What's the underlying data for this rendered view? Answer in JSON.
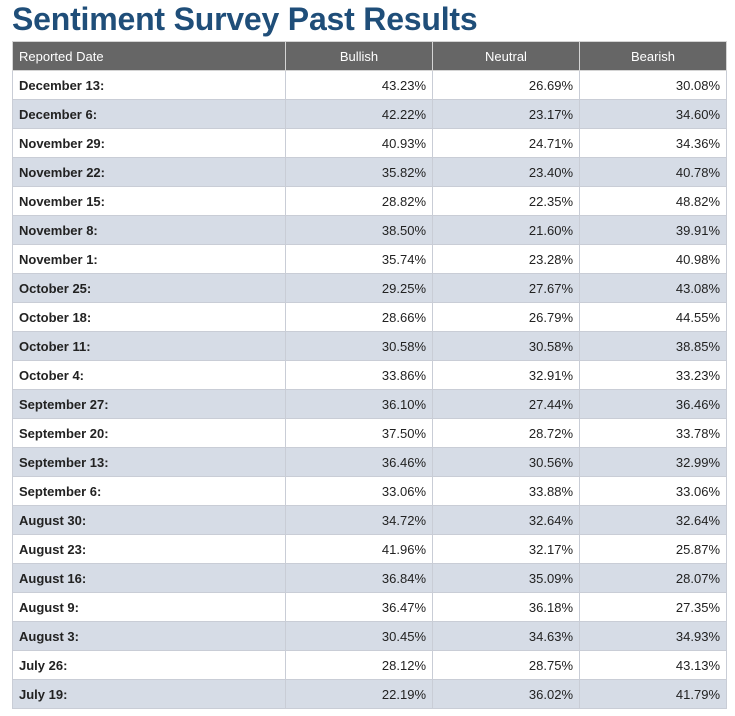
{
  "page": {
    "title": "Sentiment Survey Past Results"
  },
  "table": {
    "headers": [
      "Reported Date",
      "Bullish",
      "Neutral",
      "Bearish"
    ],
    "rows": [
      [
        "December 13:",
        "43.23%",
        "26.69%",
        "30.08%"
      ],
      [
        "December 6:",
        "42.22%",
        "23.17%",
        "34.60%"
      ],
      [
        "November 29:",
        "40.93%",
        "24.71%",
        "34.36%"
      ],
      [
        "November 22:",
        "35.82%",
        "23.40%",
        "40.78%"
      ],
      [
        "November 15:",
        "28.82%",
        "22.35%",
        "48.82%"
      ],
      [
        "November 8:",
        "38.50%",
        "21.60%",
        "39.91%"
      ],
      [
        "November 1:",
        "35.74%",
        "23.28%",
        "40.98%"
      ],
      [
        "October 25:",
        "29.25%",
        "27.67%",
        "43.08%"
      ],
      [
        "October 18:",
        "28.66%",
        "26.79%",
        "44.55%"
      ],
      [
        "October 11:",
        "30.58%",
        "30.58%",
        "38.85%"
      ],
      [
        "October 4:",
        "33.86%",
        "32.91%",
        "33.23%"
      ],
      [
        "September 27:",
        "36.10%",
        "27.44%",
        "36.46%"
      ],
      [
        "September 20:",
        "37.50%",
        "28.72%",
        "33.78%"
      ],
      [
        "September 13:",
        "36.46%",
        "30.56%",
        "32.99%"
      ],
      [
        "September 6:",
        "33.06%",
        "33.88%",
        "33.06%"
      ],
      [
        "August 30:",
        "34.72%",
        "32.64%",
        "32.64%"
      ],
      [
        "August 23:",
        "41.96%",
        "32.17%",
        "25.87%"
      ],
      [
        "August 16:",
        "36.84%",
        "35.09%",
        "28.07%"
      ],
      [
        "August 9:",
        "36.47%",
        "36.18%",
        "27.35%"
      ],
      [
        "August 3:",
        "30.45%",
        "34.63%",
        "34.93%"
      ],
      [
        "July 26:",
        "28.12%",
        "28.75%",
        "43.13%"
      ],
      [
        "July 19:",
        "22.19%",
        "36.02%",
        "41.79%"
      ]
    ]
  },
  "colors": {
    "title": "#1f4e79",
    "header_bg": "#666666",
    "row_alt_bg": "#d6dce6"
  }
}
